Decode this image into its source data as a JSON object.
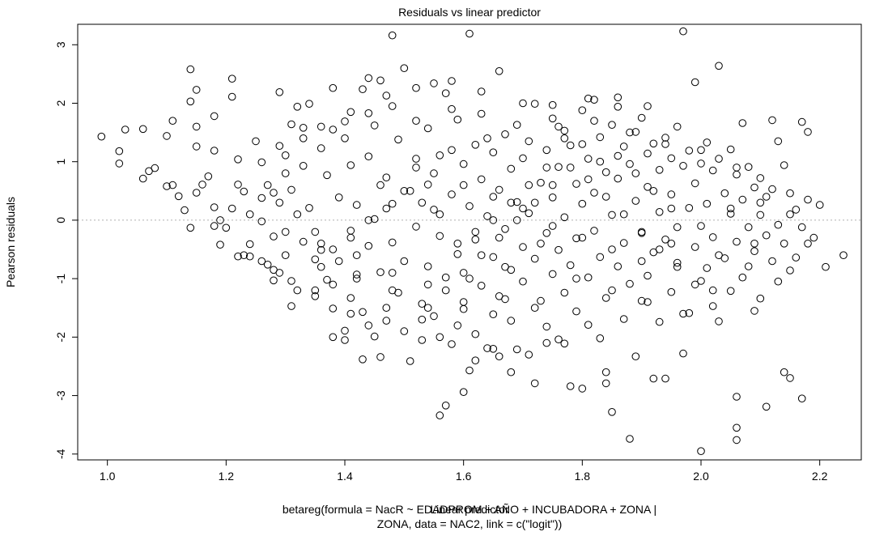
{
  "chart_data": {
    "type": "scatter",
    "title": "Residuals vs linear predictor",
    "xlabel": "Linear predictor",
    "ylabel": "Pearson residuals",
    "sub_lines": [
      "betareg(formula = NacR ~ EDADPROM + AÑO + INCUBADORA + ZONA |",
      "ZONA, data = NAC2, link = c(\"logit\"))"
    ],
    "xlim": [
      0.95,
      2.27
    ],
    "ylim": [
      -4.1,
      3.35
    ],
    "x_ticks": [
      1.0,
      1.2,
      1.4,
      1.6,
      1.8,
      2.0,
      2.2
    ],
    "x_tick_labels": [
      "1.0",
      "1.2",
      "1.4",
      "1.6",
      "1.8",
      "2.0",
      "2.2"
    ],
    "y_ticks": [
      -4,
      -3,
      -2,
      -1,
      0,
      1,
      2,
      3
    ],
    "y_tick_labels": [
      "-4",
      "-3",
      "-2",
      "-1",
      "0",
      "1",
      "2",
      "3"
    ],
    "reference_line": {
      "y": 0,
      "style": "dotted",
      "color": "#b0b0b0"
    },
    "marker": "open-circle",
    "grid": false,
    "legend": "none",
    "points": [
      [
        0.99,
        1.43
      ],
      [
        1.02,
        1.18
      ],
      [
        1.02,
        0.97
      ],
      [
        1.03,
        1.55
      ],
      [
        1.06,
        1.56
      ],
      [
        1.06,
        0.71
      ],
      [
        1.07,
        0.84
      ],
      [
        1.08,
        0.89
      ],
      [
        1.1,
        1.44
      ],
      [
        1.1,
        0.58
      ],
      [
        1.11,
        1.7
      ],
      [
        1.11,
        0.6
      ],
      [
        1.12,
        0.41
      ],
      [
        1.13,
        0.17
      ],
      [
        1.14,
        2.58
      ],
      [
        1.14,
        2.03
      ],
      [
        1.15,
        2.23
      ],
      [
        1.15,
        1.6
      ],
      [
        1.15,
        1.26
      ],
      [
        1.15,
        0.47
      ],
      [
        1.16,
        0.61
      ],
      [
        1.14,
        -0.13
      ],
      [
        1.17,
        0.75
      ],
      [
        1.18,
        1.78
      ],
      [
        1.18,
        1.19
      ],
      [
        1.18,
        0.22
      ],
      [
        1.19,
        0.0
      ],
      [
        1.19,
        -0.42
      ],
      [
        1.2,
        -0.13
      ],
      [
        1.21,
        2.42
      ],
      [
        1.21,
        2.11
      ],
      [
        1.22,
        1.04
      ],
      [
        1.22,
        0.61
      ],
      [
        1.23,
        0.49
      ],
      [
        1.22,
        -0.62
      ],
      [
        1.24,
        -0.41
      ],
      [
        1.24,
        -0.62
      ],
      [
        1.25,
        1.35
      ],
      [
        1.26,
        0.99
      ],
      [
        1.26,
        0.38
      ],
      [
        1.26,
        -0.02
      ],
      [
        1.27,
        -0.76
      ],
      [
        1.28,
        0.47
      ],
      [
        1.28,
        -0.28
      ],
      [
        1.28,
        -0.85
      ],
      [
        1.28,
        -1.03
      ],
      [
        1.29,
        2.19
      ],
      [
        1.29,
        1.27
      ],
      [
        1.3,
        1.11
      ],
      [
        1.31,
        1.64
      ],
      [
        1.31,
        0.52
      ],
      [
        1.31,
        -1.04
      ],
      [
        1.31,
        -1.47
      ],
      [
        1.32,
        1.94
      ],
      [
        1.33,
        1.58
      ],
      [
        1.33,
        0.93
      ],
      [
        1.33,
        -0.37
      ],
      [
        1.34,
        1.99
      ],
      [
        1.34,
        0.21
      ],
      [
        1.35,
        -0.67
      ],
      [
        1.35,
        -1.2
      ],
      [
        1.36,
        1.23
      ],
      [
        1.36,
        -0.51
      ],
      [
        1.37,
        0.77
      ],
      [
        1.37,
        -1.02
      ],
      [
        1.38,
        2.26
      ],
      [
        1.38,
        1.55
      ],
      [
        1.38,
        -1.51
      ],
      [
        1.38,
        -2.0
      ],
      [
        1.39,
        0.39
      ],
      [
        1.39,
        -0.7
      ],
      [
        1.4,
        1.69
      ],
      [
        1.4,
        -1.89
      ],
      [
        1.4,
        -2.05
      ],
      [
        1.41,
        1.85
      ],
      [
        1.41,
        0.94
      ],
      [
        1.41,
        -0.18
      ],
      [
        1.41,
        -1.33
      ],
      [
        1.42,
        0.26
      ],
      [
        1.42,
        -0.93
      ],
      [
        1.43,
        2.24
      ],
      [
        1.43,
        -1.57
      ],
      [
        1.43,
        -2.38
      ],
      [
        1.44,
        2.43
      ],
      [
        1.44,
        1.09
      ],
      [
        1.44,
        -0.44
      ],
      [
        1.45,
        1.62
      ],
      [
        1.45,
        0.02
      ],
      [
        1.45,
        -1.99
      ],
      [
        1.46,
        2.39
      ],
      [
        1.46,
        -0.89
      ],
      [
        1.46,
        -2.34
      ],
      [
        1.47,
        2.13
      ],
      [
        1.47,
        0.73
      ],
      [
        1.47,
        -1.72
      ],
      [
        1.48,
        3.16
      ],
      [
        1.48,
        0.28
      ],
      [
        1.48,
        -0.38
      ],
      [
        1.49,
        1.38
      ],
      [
        1.49,
        -1.24
      ],
      [
        1.5,
        2.6
      ],
      [
        1.5,
        -0.7
      ],
      [
        1.51,
        0.5
      ],
      [
        1.51,
        -2.41
      ],
      [
        1.52,
        2.26
      ],
      [
        1.52,
        1.05
      ],
      [
        1.52,
        -0.11
      ],
      [
        1.53,
        -1.43
      ],
      [
        1.53,
        -2.05
      ],
      [
        1.54,
        1.57
      ],
      [
        1.54,
        0.61
      ],
      [
        1.54,
        -0.79
      ],
      [
        1.55,
        2.34
      ],
      [
        1.55,
        0.18
      ],
      [
        1.55,
        -1.64
      ],
      [
        1.56,
        1.11
      ],
      [
        1.56,
        -0.27
      ],
      [
        1.56,
        -3.34
      ],
      [
        1.57,
        2.17
      ],
      [
        1.57,
        -0.98
      ],
      [
        1.57,
        -3.17
      ],
      [
        1.58,
        2.38
      ],
      [
        1.58,
        0.44
      ],
      [
        1.58,
        -2.12
      ],
      [
        1.59,
        1.72
      ],
      [
        1.59,
        -0.58
      ],
      [
        1.6,
        0.96
      ],
      [
        1.6,
        -1.52
      ],
      [
        1.6,
        -2.94
      ],
      [
        1.61,
        3.19
      ],
      [
        1.61,
        0.24
      ],
      [
        1.61,
        -2.57
      ],
      [
        1.62,
        1.29
      ],
      [
        1.62,
        -0.33
      ],
      [
        1.62,
        -1.95
      ],
      [
        1.63,
        1.82
      ],
      [
        1.63,
        0.7
      ],
      [
        1.63,
        -1.12
      ],
      [
        1.64,
        0.07
      ],
      [
        1.64,
        -2.19
      ],
      [
        1.65,
        1.16
      ],
      [
        1.65,
        -0.63
      ],
      [
        1.65,
        -1.61
      ],
      [
        1.66,
        2.55
      ],
      [
        1.66,
        0.52
      ],
      [
        1.66,
        -2.33
      ],
      [
        1.67,
        1.47
      ],
      [
        1.67,
        -0.15
      ],
      [
        1.67,
        -1.35
      ],
      [
        1.68,
        0.88
      ],
      [
        1.68,
        -0.85
      ],
      [
        1.68,
        -1.72
      ],
      [
        1.69,
        1.63
      ],
      [
        1.69,
        0.31
      ],
      [
        1.69,
        -2.21
      ],
      [
        1.7,
        1.06
      ],
      [
        1.7,
        -0.46
      ],
      [
        1.7,
        -1.05
      ],
      [
        1.71,
        1.35
      ],
      [
        1.71,
        0.12
      ],
      [
        1.72,
        1.99
      ],
      [
        1.72,
        -0.66
      ],
      [
        1.72,
        -2.79
      ],
      [
        1.73,
        0.64
      ],
      [
        1.73,
        -1.38
      ],
      [
        1.74,
        1.2
      ],
      [
        1.74,
        -0.22
      ],
      [
        1.74,
        -1.82
      ],
      [
        1.75,
        1.74
      ],
      [
        1.75,
        0.39
      ],
      [
        1.75,
        -0.92
      ],
      [
        1.76,
        0.91
      ],
      [
        1.76,
        -0.51
      ],
      [
        1.76,
        -2.04
      ],
      [
        1.77,
        1.53
      ],
      [
        1.77,
        0.05
      ],
      [
        1.77,
        -1.24
      ],
      [
        1.78,
        1.28
      ],
      [
        1.78,
        -0.77
      ],
      [
        1.78,
        -2.84
      ],
      [
        1.79,
        0.62
      ],
      [
        1.79,
        -0.31
      ],
      [
        1.79,
        -1.56
      ],
      [
        1.8,
        1.88
      ],
      [
        1.8,
        0.28
      ],
      [
        1.8,
        -2.88
      ],
      [
        1.81,
        1.05
      ],
      [
        1.81,
        -0.98
      ],
      [
        1.81,
        -1.79
      ],
      [
        1.82,
        2.06
      ],
      [
        1.82,
        0.47
      ],
      [
        1.82,
        -0.18
      ],
      [
        1.83,
        1.42
      ],
      [
        1.83,
        -0.63
      ],
      [
        1.83,
        -2.02
      ],
      [
        1.84,
        0.82
      ],
      [
        1.84,
        -1.33
      ],
      [
        1.84,
        -2.79
      ],
      [
        1.85,
        1.63
      ],
      [
        1.85,
        0.09
      ],
      [
        1.85,
        -3.28
      ],
      [
        1.86,
        2.1
      ],
      [
        1.86,
        0.71
      ],
      [
        1.86,
        -0.79
      ],
      [
        1.87,
        1.26
      ],
      [
        1.87,
        -0.39
      ],
      [
        1.87,
        -1.69
      ],
      [
        1.88,
        0.96
      ],
      [
        1.88,
        -1.09
      ],
      [
        1.88,
        -3.74
      ],
      [
        1.89,
        1.51
      ],
      [
        1.89,
        0.33
      ],
      [
        1.89,
        -2.33
      ],
      [
        1.9,
        1.75
      ],
      [
        1.9,
        -0.22
      ],
      [
        1.9,
        -1.38
      ],
      [
        1.91,
        1.14
      ],
      [
        1.91,
        0.57
      ],
      [
        1.91,
        -0.95
      ],
      [
        1.92,
        1.31
      ],
      [
        1.92,
        -0.55
      ],
      [
        1.92,
        -2.71
      ],
      [
        1.93,
        0.86
      ],
      [
        1.93,
        0.14
      ],
      [
        1.93,
        -1.74
      ],
      [
        1.94,
        1.41
      ],
      [
        1.94,
        -0.33
      ],
      [
        1.94,
        -2.71
      ],
      [
        1.95,
        1.06
      ],
      [
        1.95,
        0.44
      ],
      [
        1.95,
        -1.23
      ],
      [
        1.96,
        1.6
      ],
      [
        1.96,
        -0.12
      ],
      [
        1.96,
        -0.73
      ],
      [
        1.97,
        3.23
      ],
      [
        1.97,
        0.93
      ],
      [
        1.97,
        -2.28
      ],
      [
        1.98,
        1.19
      ],
      [
        1.98,
        0.21
      ],
      [
        1.98,
        -1.59
      ],
      [
        1.99,
        2.36
      ],
      [
        1.99,
        0.63
      ],
      [
        1.99,
        -0.46
      ],
      [
        2.0,
        0.97
      ],
      [
        2.0,
        -1.04
      ],
      [
        2.0,
        -3.95
      ],
      [
        2.01,
        1.33
      ],
      [
        2.01,
        0.28
      ],
      [
        2.01,
        -0.82
      ],
      [
        2.02,
        0.85
      ],
      [
        2.02,
        -0.29
      ],
      [
        2.02,
        -1.47
      ],
      [
        2.03,
        2.64
      ],
      [
        2.03,
        1.05
      ],
      [
        2.03,
        -1.73
      ],
      [
        2.04,
        0.46
      ],
      [
        2.04,
        -0.65
      ],
      [
        2.05,
        1.21
      ],
      [
        2.05,
        0.11
      ],
      [
        2.05,
        -1.21
      ],
      [
        2.06,
        0.78
      ],
      [
        2.06,
        -0.37
      ],
      [
        2.06,
        -3.02
      ],
      [
        2.07,
        1.66
      ],
      [
        2.07,
        0.35
      ],
      [
        2.07,
        -0.98
      ],
      [
        2.08,
        0.91
      ],
      [
        2.08,
        -0.12
      ],
      [
        2.08,
        -0.79
      ],
      [
        2.09,
        0.56
      ],
      [
        2.09,
        -0.53
      ],
      [
        2.09,
        -1.55
      ],
      [
        2.1,
        0.72
      ],
      [
        2.1,
        0.09
      ],
      [
        2.1,
        -1.34
      ],
      [
        2.11,
        0.4
      ],
      [
        2.11,
        -0.26
      ],
      [
        2.11,
        -3.19
      ],
      [
        2.12,
        1.71
      ],
      [
        2.12,
        0.53
      ],
      [
        2.12,
        -0.7
      ],
      [
        2.13,
        1.35
      ],
      [
        2.13,
        -0.08
      ],
      [
        2.13,
        -1.05
      ],
      [
        2.14,
        0.94
      ],
      [
        2.14,
        -0.4
      ],
      [
        2.14,
        -2.6
      ],
      [
        2.15,
        0.46
      ],
      [
        2.15,
        -0.86
      ],
      [
        2.15,
        -2.7
      ],
      [
        2.16,
        0.18
      ],
      [
        2.16,
        -0.64
      ],
      [
        2.17,
        1.68
      ],
      [
        2.17,
        -0.12
      ],
      [
        2.17,
        -3.05
      ],
      [
        2.18,
        1.51
      ],
      [
        2.18,
        0.35
      ],
      [
        2.18,
        -0.4
      ],
      [
        2.19,
        -0.3
      ],
      [
        2.2,
        0.26
      ],
      [
        2.21,
        -0.8
      ],
      [
        2.24,
        -0.6
      ],
      [
        2.06,
        -3.55
      ],
      [
        2.06,
        -3.76
      ],
      [
        1.84,
        -2.6
      ],
      [
        1.77,
        -2.11
      ],
      [
        1.52,
        1.7
      ],
      [
        1.58,
        1.9
      ],
      [
        1.63,
        2.2
      ],
      [
        1.7,
        2.0
      ],
      [
        1.75,
        1.97
      ],
      [
        1.81,
        2.08
      ],
      [
        1.86,
        1.94
      ],
      [
        1.91,
        1.95
      ],
      [
        1.44,
        1.83
      ],
      [
        1.48,
        1.95
      ],
      [
        1.4,
        1.4
      ],
      [
        1.36,
        1.6
      ],
      [
        1.33,
        1.4
      ],
      [
        1.3,
        0.8
      ],
      [
        1.27,
        0.6
      ],
      [
        1.24,
        0.1
      ],
      [
        1.21,
        0.2
      ],
      [
        1.18,
        -0.1
      ],
      [
        1.23,
        -0.6
      ],
      [
        1.26,
        -0.7
      ],
      [
        1.29,
        -0.9
      ],
      [
        1.32,
        -1.2
      ],
      [
        1.35,
        -1.3
      ],
      [
        1.38,
        -1.1
      ],
      [
        1.41,
        -1.6
      ],
      [
        1.44,
        -1.8
      ],
      [
        1.47,
        -1.5
      ],
      [
        1.5,
        -1.9
      ],
      [
        1.53,
        -1.7
      ],
      [
        1.56,
        -2.0
      ],
      [
        1.59,
        -1.8
      ],
      [
        1.62,
        -2.4
      ],
      [
        1.65,
        -2.2
      ],
      [
        1.68,
        -2.6
      ],
      [
        1.71,
        -2.3
      ],
      [
        1.74,
        -2.1
      ],
      [
        1.57,
        -1.2
      ],
      [
        1.6,
        -0.9
      ],
      [
        1.63,
        -0.6
      ],
      [
        1.66,
        -0.3
      ],
      [
        1.69,
        0.0
      ],
      [
        1.72,
        0.3
      ],
      [
        1.75,
        0.6
      ],
      [
        1.78,
        0.9
      ],
      [
        1.81,
        0.7
      ],
      [
        1.84,
        0.4
      ],
      [
        1.87,
        0.1
      ],
      [
        1.9,
        -0.2
      ],
      [
        1.93,
        -0.5
      ],
      [
        1.96,
        -0.8
      ],
      [
        1.99,
        -1.1
      ],
      [
        2.02,
        -1.2
      ],
      [
        1.95,
        0.2
      ],
      [
        1.92,
        0.5
      ],
      [
        1.89,
        0.8
      ],
      [
        1.86,
        1.1
      ],
      [
        1.83,
        1.0
      ],
      [
        1.8,
        1.3
      ],
      [
        1.77,
        1.4
      ],
      [
        1.74,
        0.9
      ],
      [
        1.71,
        0.6
      ],
      [
        1.68,
        0.3
      ],
      [
        1.65,
        0.0
      ],
      [
        1.62,
        -0.2
      ],
      [
        1.59,
        -0.4
      ],
      [
        1.56,
        0.1
      ],
      [
        1.53,
        0.3
      ],
      [
        1.5,
        0.5
      ],
      [
        1.47,
        0.2
      ],
      [
        1.44,
        0.0
      ],
      [
        1.41,
        -0.3
      ],
      [
        1.38,
        -0.5
      ],
      [
        1.35,
        -0.2
      ],
      [
        1.32,
        0.1
      ],
      [
        1.29,
        0.3
      ],
      [
        1.55,
        0.8
      ],
      [
        1.6,
        0.6
      ],
      [
        1.65,
        0.4
      ],
      [
        1.7,
        0.2
      ],
      [
        1.75,
        -0.1
      ],
      [
        1.8,
        -0.3
      ],
      [
        1.85,
        -0.5
      ],
      [
        1.9,
        -0.7
      ],
      [
        1.95,
        -0.4
      ],
      [
        2.0,
        -0.1
      ],
      [
        2.05,
        0.2
      ],
      [
        2.1,
        0.3
      ],
      [
        2.15,
        0.1
      ],
      [
        1.73,
        -0.4
      ],
      [
        1.67,
        -0.8
      ],
      [
        1.61,
        -1.0
      ],
      [
        1.54,
        -1.1
      ],
      [
        1.48,
        -0.9
      ],
      [
        1.42,
        -0.6
      ],
      [
        1.36,
        -0.4
      ],
      [
        1.3,
        -0.6
      ],
      [
        1.46,
        0.6
      ],
      [
        1.52,
        0.9
      ],
      [
        1.58,
        1.2
      ],
      [
        1.64,
        1.4
      ],
      [
        1.76,
        1.6
      ],
      [
        1.82,
        1.7
      ],
      [
        1.88,
        1.5
      ],
      [
        1.94,
        1.3
      ],
      [
        2.0,
        1.2
      ],
      [
        2.06,
        0.9
      ],
      [
        1.79,
        -1.0
      ],
      [
        1.85,
        -1.2
      ],
      [
        1.91,
        -1.4
      ],
      [
        1.97,
        -1.6
      ],
      [
        2.03,
        -0.6
      ],
      [
        2.09,
        -0.4
      ],
      [
        1.72,
        -1.5
      ],
      [
        1.66,
        -1.3
      ],
      [
        1.6,
        -1.4
      ],
      [
        1.54,
        -1.5
      ],
      [
        1.48,
        -1.2
      ],
      [
        1.42,
        -1.0
      ],
      [
        1.36,
        -0.8
      ],
      [
        1.3,
        -0.2
      ]
    ]
  }
}
